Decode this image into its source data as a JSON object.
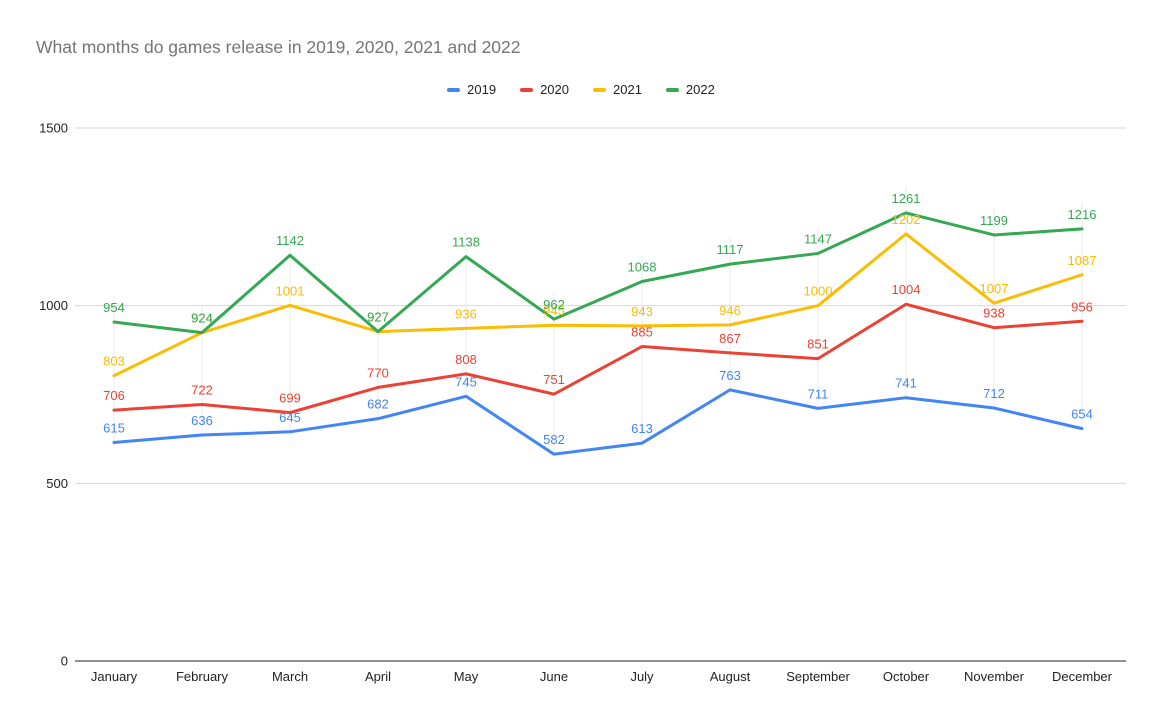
{
  "title": "What months do games release in 2019, 2020, 2021 and 2022",
  "chart_data": {
    "type": "line",
    "categories": [
      "January",
      "February",
      "March",
      "April",
      "May",
      "June",
      "July",
      "August",
      "September",
      "October",
      "November",
      "December"
    ],
    "series": [
      {
        "name": "2019",
        "color": "#4285F4",
        "values": [
          615,
          636,
          645,
          682,
          745,
          582,
          613,
          763,
          711,
          741,
          712,
          654
        ]
      },
      {
        "name": "2020",
        "color": "#EA4335",
        "values": [
          706,
          722,
          699,
          770,
          808,
          751,
          885,
          867,
          851,
          1004,
          938,
          956
        ]
      },
      {
        "name": "2021",
        "color": "#FBBC04",
        "values": [
          803,
          924,
          1001,
          927,
          936,
          945,
          943,
          946,
          1000,
          1202,
          1007,
          1087
        ]
      },
      {
        "name": "2022",
        "color": "#34A853",
        "values": [
          954,
          924,
          1142,
          927,
          1138,
          962,
          1068,
          1117,
          1147,
          1261,
          1199,
          1216
        ]
      }
    ],
    "title": "What months do games release in 2019, 2020, 2021 and 2022",
    "xlabel": "",
    "ylabel": "",
    "ylim": [
      0,
      1500
    ],
    "y_ticks": [
      0,
      500,
      1000,
      1500
    ],
    "grid": "horizontal",
    "legend_position": "top",
    "data_labels": true
  },
  "colors": {
    "background": "#ffffff",
    "title_text": "#757575",
    "axis_tick_text": "#222222",
    "gridline": "#d9d9d9",
    "vertical_guide": "#e9e9e9",
    "axis_line": "#212121"
  }
}
